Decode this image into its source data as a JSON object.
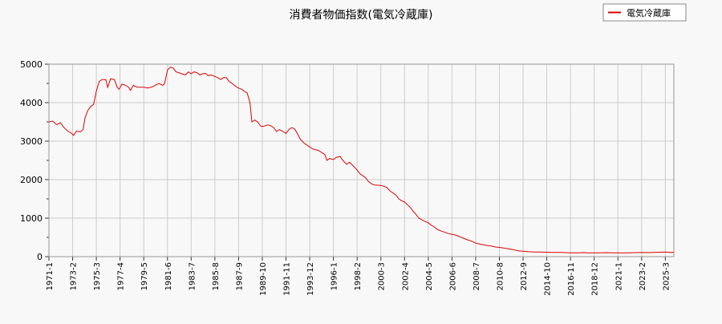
{
  "chart_data": {
    "type": "line",
    "title": "消費者物価指数(電気冷蔵庫)",
    "xlabel": "",
    "ylabel": "",
    "ylim": [
      0,
      5000
    ],
    "yticks": [
      0,
      1000,
      2000,
      3000,
      4000,
      5000
    ],
    "xlim": [
      "1971-1",
      "2025-12"
    ],
    "xtick_labels": [
      "1971-1",
      "1973-2",
      "1975-3",
      "1977-4",
      "1979-5",
      "1981-6",
      "1983-7",
      "1985-8",
      "1987-9",
      "1989-10",
      "1991-11",
      "1993-12",
      "1996-1",
      "1998-2",
      "2000-3",
      "2002-4",
      "2004-5",
      "2006-6",
      "2008-7",
      "2010-8",
      "2012-9",
      "2014-10",
      "2016-11",
      "2018-12",
      "2021-1",
      "2023-2",
      "2025-3"
    ],
    "grid": true,
    "legend_position": "top-right",
    "series": [
      {
        "name": "電気冷蔵庫",
        "color": "#dd0000",
        "points": [
          [
            "1971-1",
            3500
          ],
          [
            "1971-5",
            3520
          ],
          [
            "1971-9",
            3430
          ],
          [
            "1972-1",
            3480
          ],
          [
            "1972-5",
            3350
          ],
          [
            "1972-9",
            3260
          ],
          [
            "1973-1",
            3200
          ],
          [
            "1973-3",
            3150
          ],
          [
            "1973-6",
            3260
          ],
          [
            "1973-10",
            3240
          ],
          [
            "1974-1",
            3300
          ],
          [
            "1974-3",
            3600
          ],
          [
            "1974-6",
            3800
          ],
          [
            "1974-9",
            3900
          ],
          [
            "1974-12",
            3950
          ],
          [
            "1975-3",
            4300
          ],
          [
            "1975-6",
            4550
          ],
          [
            "1975-9",
            4600
          ],
          [
            "1976-1",
            4600
          ],
          [
            "1976-3",
            4400
          ],
          [
            "1976-6",
            4620
          ],
          [
            "1976-10",
            4600
          ],
          [
            "1977-1",
            4400
          ],
          [
            "1977-3",
            4350
          ],
          [
            "1977-6",
            4480
          ],
          [
            "1977-10",
            4450
          ],
          [
            "1978-1",
            4400
          ],
          [
            "1978-3",
            4320
          ],
          [
            "1978-6",
            4450
          ],
          [
            "1978-10",
            4400
          ],
          [
            "1979-1",
            4400
          ],
          [
            "1979-5",
            4400
          ],
          [
            "1979-9",
            4380
          ],
          [
            "1980-1",
            4400
          ],
          [
            "1980-5",
            4450
          ],
          [
            "1980-9",
            4500
          ],
          [
            "1981-1",
            4450
          ],
          [
            "1981-3",
            4500
          ],
          [
            "1981-6",
            4850
          ],
          [
            "1981-9",
            4920
          ],
          [
            "1981-12",
            4900
          ],
          [
            "1982-3",
            4800
          ],
          [
            "1982-6",
            4780
          ],
          [
            "1982-9",
            4750
          ],
          [
            "1983-1",
            4720
          ],
          [
            "1983-4",
            4800
          ],
          [
            "1983-7",
            4750
          ],
          [
            "1983-10",
            4800
          ],
          [
            "1984-1",
            4780
          ],
          [
            "1984-4",
            4720
          ],
          [
            "1984-7",
            4750
          ],
          [
            "1984-10",
            4760
          ],
          [
            "1985-1",
            4700
          ],
          [
            "1985-4",
            4720
          ],
          [
            "1985-8",
            4680
          ],
          [
            "1985-11",
            4650
          ],
          [
            "1986-2",
            4600
          ],
          [
            "1986-5",
            4650
          ],
          [
            "1986-8",
            4650
          ],
          [
            "1986-11",
            4550
          ],
          [
            "1987-2",
            4500
          ],
          [
            "1987-6",
            4420
          ],
          [
            "1987-9",
            4380
          ],
          [
            "1987-12",
            4350
          ],
          [
            "1988-3",
            4300
          ],
          [
            "1988-6",
            4250
          ],
          [
            "1988-9",
            4000
          ],
          [
            "1988-11",
            3500
          ],
          [
            "1989-2",
            3550
          ],
          [
            "1989-5",
            3500
          ],
          [
            "1989-8",
            3400
          ],
          [
            "1989-10",
            3380
          ],
          [
            "1990-1",
            3400
          ],
          [
            "1990-4",
            3420
          ],
          [
            "1990-7",
            3400
          ],
          [
            "1990-10",
            3350
          ],
          [
            "1991-1",
            3250
          ],
          [
            "1991-4",
            3300
          ],
          [
            "1991-8",
            3250
          ],
          [
            "1991-11",
            3200
          ],
          [
            "1992-2",
            3300
          ],
          [
            "1992-5",
            3350
          ],
          [
            "1992-8",
            3320
          ],
          [
            "1992-11",
            3200
          ],
          [
            "1993-2",
            3050
          ],
          [
            "1993-6",
            2950
          ],
          [
            "1993-9",
            2900
          ],
          [
            "1993-12",
            2850
          ],
          [
            "1994-3",
            2800
          ],
          [
            "1994-6",
            2780
          ],
          [
            "1994-9",
            2760
          ],
          [
            "1995-1",
            2700
          ],
          [
            "1995-4",
            2650
          ],
          [
            "1995-6",
            2500
          ],
          [
            "1995-9",
            2550
          ],
          [
            "1996-1",
            2520
          ],
          [
            "1996-4",
            2580
          ],
          [
            "1996-8",
            2600
          ],
          [
            "1996-11",
            2500
          ],
          [
            "1997-3",
            2400
          ],
          [
            "1997-6",
            2450
          ],
          [
            "1997-9",
            2380
          ],
          [
            "1998-2",
            2250
          ],
          [
            "1998-5",
            2150
          ],
          [
            "1998-8",
            2100
          ],
          [
            "1998-11",
            2050
          ],
          [
            "1999-2",
            1950
          ],
          [
            "1999-6",
            1880
          ],
          [
            "1999-9",
            1860
          ],
          [
            "2000-3",
            1850
          ],
          [
            "2000-6",
            1830
          ],
          [
            "2000-9",
            1800
          ],
          [
            "2001-1",
            1700
          ],
          [
            "2001-4",
            1650
          ],
          [
            "2001-7",
            1600
          ],
          [
            "2001-10",
            1500
          ],
          [
            "2002-1",
            1450
          ],
          [
            "2002-4",
            1420
          ],
          [
            "2002-7",
            1350
          ],
          [
            "2002-10",
            1280
          ],
          [
            "2003-1",
            1180
          ],
          [
            "2003-4",
            1100
          ],
          [
            "2003-7",
            1000
          ],
          [
            "2003-10",
            960
          ],
          [
            "2004-1",
            920
          ],
          [
            "2004-5",
            880
          ],
          [
            "2004-8",
            820
          ],
          [
            "2004-12",
            760
          ],
          [
            "2005-3",
            700
          ],
          [
            "2005-7",
            660
          ],
          [
            "2005-10",
            640
          ],
          [
            "2006-2",
            600
          ],
          [
            "2006-6",
            580
          ],
          [
            "2006-10",
            560
          ],
          [
            "2007-2",
            520
          ],
          [
            "2007-6",
            480
          ],
          [
            "2007-10",
            440
          ],
          [
            "2008-3",
            400
          ],
          [
            "2008-7",
            350
          ],
          [
            "2008-11",
            330
          ],
          [
            "2009-3",
            310
          ],
          [
            "2009-7",
            290
          ],
          [
            "2009-11",
            280
          ],
          [
            "2010-4",
            250
          ],
          [
            "2010-8",
            240
          ],
          [
            "2011-1",
            220
          ],
          [
            "2011-6",
            200
          ],
          [
            "2011-11",
            180
          ],
          [
            "2012-4",
            150
          ],
          [
            "2012-9",
            140
          ],
          [
            "2013-2",
            130
          ],
          [
            "2013-8",
            120
          ],
          [
            "2014-3",
            120
          ],
          [
            "2014-10",
            115
          ],
          [
            "2015-6",
            110
          ],
          [
            "2016-2",
            110
          ],
          [
            "2016-11",
            100
          ],
          [
            "2017-6",
            100
          ],
          [
            "2018-1",
            105
          ],
          [
            "2018-6",
            95
          ],
          [
            "2018-12",
            100
          ],
          [
            "2019-6",
            100
          ],
          [
            "2020-1",
            105
          ],
          [
            "2020-6",
            100
          ],
          [
            "2021-1",
            100
          ],
          [
            "2021-7",
            95
          ],
          [
            "2022-1",
            100
          ],
          [
            "2022-7",
            105
          ],
          [
            "2023-2",
            110
          ],
          [
            "2023-8",
            105
          ],
          [
            "2024-3",
            110
          ],
          [
            "2024-9",
            115
          ],
          [
            "2025-3",
            120
          ],
          [
            "2025-8",
            110
          ],
          [
            "2025-12",
            110
          ]
        ]
      }
    ]
  }
}
